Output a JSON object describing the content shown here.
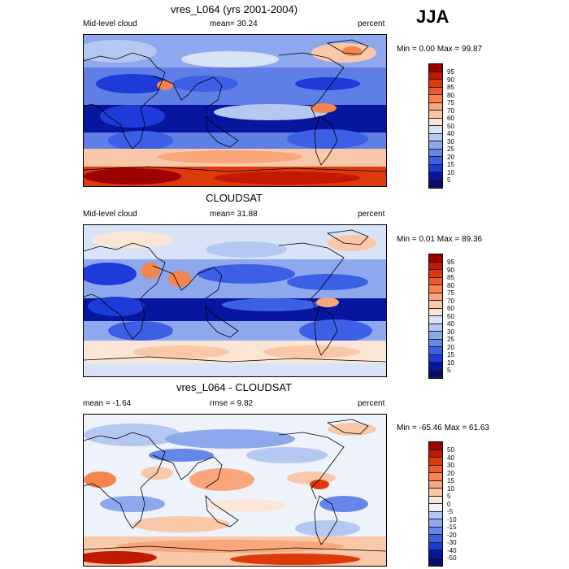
{
  "season": "JJA",
  "panels": [
    {
      "title": "vres_L064 (yrs 2001-2004)",
      "left_label": "Mid-level cloud",
      "center_label": "mean=  30.24",
      "right_label": "percent",
      "minmax": "Min =   0.00 Max =  99.87",
      "colorbar": {
        "labels": [
          "95",
          "90",
          "85",
          "80",
          "75",
          "70",
          "60",
          "50",
          "40",
          "30",
          "25",
          "20",
          "15",
          "10",
          "5"
        ],
        "colors": [
          "#9e0000",
          "#c21a00",
          "#dd3a0c",
          "#ee5a2a",
          "#f6844e",
          "#f8a67a",
          "#f9c8a8",
          "#fbe6d6",
          "#d9e3f7",
          "#b5c8f2",
          "#8ea8ee",
          "#6687ea",
          "#3d5fe6",
          "#1e3ad8",
          "#07169e"
        ]
      }
    },
    {
      "title": "CLOUDSAT",
      "left_label": "Mid-level cloud",
      "center_label": "mean=  31.88",
      "right_label": "percent",
      "minmax": "Min =   0.01 Max =  89.36",
      "colorbar": {
        "labels": [
          "95",
          "90",
          "85",
          "80",
          "75",
          "70",
          "60",
          "50",
          "40",
          "30",
          "25",
          "20",
          "15",
          "10",
          "5"
        ],
        "colors": [
          "#9e0000",
          "#c21a00",
          "#dd3a0c",
          "#ee5a2a",
          "#f6844e",
          "#f8a67a",
          "#f9c8a8",
          "#fbe6d6",
          "#d9e3f7",
          "#b5c8f2",
          "#8ea8ee",
          "#6687ea",
          "#3d5fe6",
          "#1e3ad8",
          "#07169e"
        ]
      }
    },
    {
      "title": "vres_L064 - CLOUDSAT",
      "left_label": "mean =  -1.64",
      "center_label": "rmse =   9.82",
      "right_label": "percent",
      "minmax": "Min = -65.46 Max =  61.63",
      "colorbar": {
        "labels": [
          "50",
          "40",
          "30",
          "20",
          "15",
          "10",
          "5",
          "0",
          "-5",
          "-10",
          "-15",
          "-20",
          "-30",
          "-40",
          "-50"
        ],
        "colors": [
          "#9e0000",
          "#c21a00",
          "#dd3a0c",
          "#ee5a2a",
          "#f6844e",
          "#f8a67a",
          "#f9c8a8",
          "#fbe6d6",
          "#eef2fb",
          "#b5c8f2",
          "#8ea8ee",
          "#6687ea",
          "#3d5fe6",
          "#1e3ad8",
          "#07169e",
          "#040c70"
        ]
      }
    }
  ]
}
